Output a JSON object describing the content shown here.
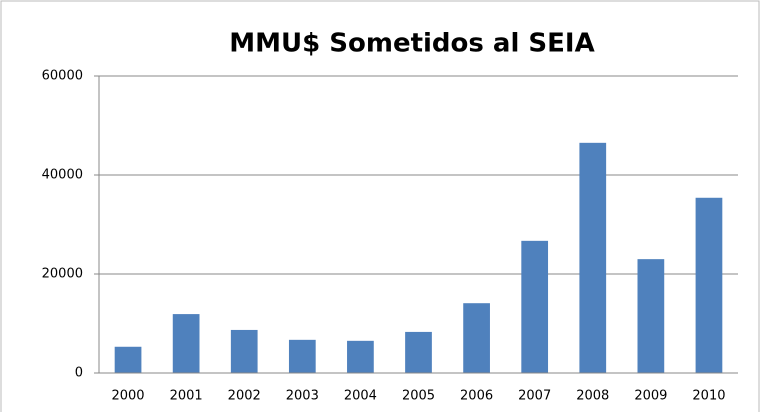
{
  "chart_data": {
    "type": "bar",
    "title": "MMU$ Sometidos al SEIA",
    "categories": [
      "2000",
      "2001",
      "2002",
      "2003",
      "2004",
      "2005",
      "2006",
      "2007",
      "2008",
      "2009",
      "2010"
    ],
    "values": [
      5300,
      11900,
      8700,
      6700,
      6500,
      8300,
      14100,
      26700,
      46500,
      23000,
      35400
    ],
    "color": "#4f81bd",
    "ylim": [
      0,
      60000
    ],
    "yticks": [
      0,
      20000,
      40000,
      60000
    ],
    "grid": true
  }
}
